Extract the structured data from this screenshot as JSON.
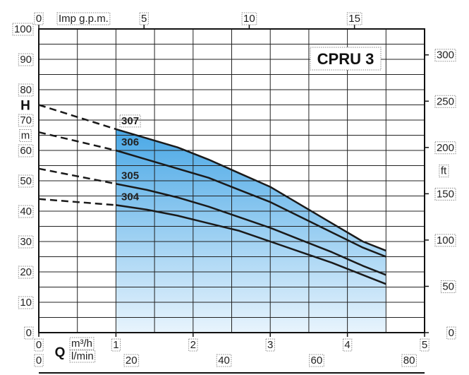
{
  "chart_data": {
    "type": "line",
    "title": "CPRU 3",
    "left_axis": {
      "symbol": "H",
      "unit": "m",
      "range": [
        0,
        100
      ],
      "ticks": [
        0,
        10,
        20,
        30,
        40,
        50,
        60,
        70,
        80,
        90,
        100
      ]
    },
    "right_axis": {
      "unit": "ft",
      "range": [
        0,
        328
      ],
      "ticks": [
        0,
        50,
        100,
        150,
        200,
        250,
        300
      ]
    },
    "top_axis": {
      "label": "Imp g.p.m.",
      "ticks": [
        0,
        5,
        10,
        15
      ]
    },
    "bottom_axis_m3h": {
      "symbol": "Q",
      "unit": "m³/h",
      "ticks": [
        0,
        1,
        2,
        3,
        4,
        5
      ]
    },
    "bottom_axis_lmin": {
      "unit": "l/min",
      "ticks": [
        0,
        20,
        40,
        60,
        80
      ]
    },
    "x_range_m3h": [
      0,
      5
    ],
    "operating_range_m3h": [
      1,
      4.5
    ],
    "series": [
      {
        "name": "307",
        "dashed": {
          "x": [
            0,
            1
          ],
          "y": [
            75,
            67
          ]
        },
        "solid": {
          "x": [
            1,
            1.4,
            1.8,
            2.2,
            2.6,
            3.0,
            3.4,
            3.8,
            4.2,
            4.5
          ],
          "y": [
            67,
            64,
            61,
            57,
            52.5,
            48,
            42,
            36,
            30,
            27
          ]
        }
      },
      {
        "name": "306",
        "dashed": {
          "x": [
            0,
            1
          ],
          "y": [
            66,
            60
          ]
        },
        "solid": {
          "x": [
            1,
            1.4,
            1.8,
            2.2,
            2.6,
            3.0,
            3.4,
            3.8,
            4.2,
            4.5
          ],
          "y": [
            60,
            57,
            54,
            51,
            47,
            43,
            38,
            33,
            28,
            25
          ]
        }
      },
      {
        "name": "305",
        "dashed": {
          "x": [
            0,
            1
          ],
          "y": [
            54,
            49
          ]
        },
        "solid": {
          "x": [
            1,
            1.4,
            1.8,
            2.2,
            2.6,
            3.0,
            3.4,
            3.8,
            4.2,
            4.5
          ],
          "y": [
            49,
            47,
            44.5,
            41.5,
            38,
            34.5,
            30.5,
            26.5,
            22,
            19
          ]
        }
      },
      {
        "name": "304",
        "dashed": {
          "x": [
            0,
            1
          ],
          "y": [
            44,
            42
          ]
        },
        "solid": {
          "x": [
            1,
            1.4,
            1.8,
            2.2,
            2.6,
            3.0,
            3.4,
            3.8,
            4.2,
            4.5
          ],
          "y": [
            42,
            40.5,
            38.5,
            36,
            33.5,
            30,
            26.5,
            23,
            19,
            16
          ]
        }
      }
    ]
  }
}
